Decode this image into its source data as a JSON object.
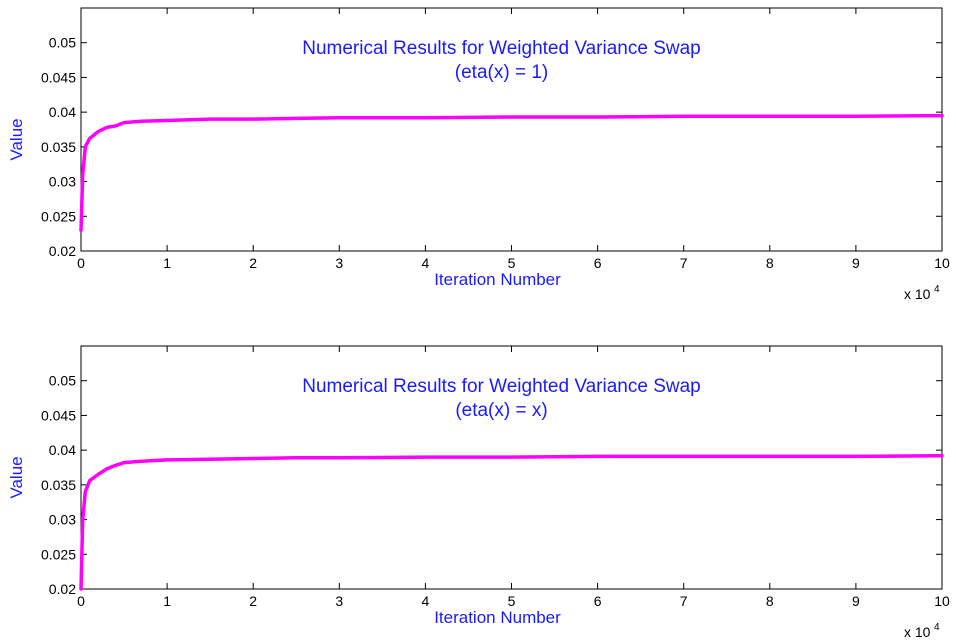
{
  "chart_data": [
    {
      "type": "line",
      "title": "Numerical Results for Weighted Variance Swap",
      "subtitle": "(eta(x) = 1)",
      "xlabel": "Iteration Number",
      "ylabel": "Value",
      "x_multiplier_base": "x 10",
      "x_multiplier_exp": "4",
      "xlim": [
        0,
        10
      ],
      "ylim": [
        0.02,
        0.055
      ],
      "xticks": [
        0,
        1,
        2,
        3,
        4,
        5,
        6,
        7,
        8,
        9,
        10
      ],
      "yticks": [
        "0.02",
        "0.025",
        "0.03",
        "0.035",
        "0.04",
        "0.045",
        "0.05"
      ],
      "grid": false,
      "text_color": "#1a1aff",
      "series": [
        {
          "color": "#ff00ff",
          "x": [
            0,
            0.02,
            0.05,
            0.1,
            0.2,
            0.3,
            0.4,
            0.5,
            0.7,
            1.0,
            1.5,
            2.0,
            2.5,
            3.0,
            4.0,
            5.0,
            6.0,
            7.0,
            8.0,
            9.0,
            10.0
          ],
          "y": [
            0.023,
            0.031,
            0.035,
            0.0362,
            0.0372,
            0.0378,
            0.038,
            0.0385,
            0.0387,
            0.0388,
            0.039,
            0.039,
            0.0391,
            0.0392,
            0.0392,
            0.0393,
            0.0393,
            0.0394,
            0.0394,
            0.0394,
            0.0395
          ]
        }
      ]
    },
    {
      "type": "line",
      "title": "Numerical Results for Weighted Variance Swap",
      "subtitle": "(eta(x) = x)",
      "xlabel": "Iteration Number",
      "ylabel": "Value",
      "x_multiplier_base": "x 10",
      "x_multiplier_exp": "4",
      "xlim": [
        0,
        10
      ],
      "ylim": [
        0.02,
        0.055
      ],
      "xticks": [
        0,
        1,
        2,
        3,
        4,
        5,
        6,
        7,
        8,
        9,
        10
      ],
      "yticks": [
        "0.02",
        "0.025",
        "0.03",
        "0.035",
        "0.04",
        "0.045",
        "0.05"
      ],
      "grid": false,
      "text_color": "#1a1aff",
      "series": [
        {
          "color": "#ff00ff",
          "x": [
            0,
            0.02,
            0.05,
            0.1,
            0.2,
            0.3,
            0.4,
            0.5,
            0.7,
            1.0,
            1.5,
            2.0,
            2.5,
            3.0,
            4.0,
            5.0,
            6.0,
            7.0,
            8.0,
            9.0,
            10.0
          ],
          "y": [
            0.02,
            0.03,
            0.034,
            0.0356,
            0.0365,
            0.0373,
            0.0378,
            0.0382,
            0.0384,
            0.0386,
            0.0387,
            0.0388,
            0.0389,
            0.0389,
            0.039,
            0.039,
            0.0391,
            0.0391,
            0.0391,
            0.0391,
            0.0392
          ]
        }
      ]
    }
  ]
}
